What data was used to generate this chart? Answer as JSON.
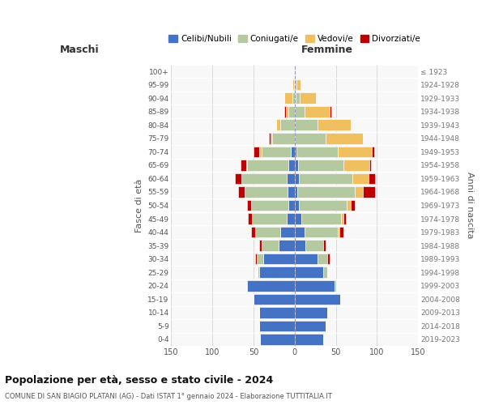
{
  "age_groups": [
    "0-4",
    "5-9",
    "10-14",
    "15-19",
    "20-24",
    "25-29",
    "30-34",
    "35-39",
    "40-44",
    "45-49",
    "50-54",
    "55-59",
    "60-64",
    "65-69",
    "70-74",
    "75-79",
    "80-84",
    "85-89",
    "90-94",
    "95-99",
    "100+"
  ],
  "birth_years": [
    "2019-2023",
    "2014-2018",
    "2009-2013",
    "2004-2008",
    "1999-2003",
    "1994-1998",
    "1989-1993",
    "1984-1988",
    "1979-1983",
    "1974-1978",
    "1969-1973",
    "1964-1968",
    "1959-1963",
    "1954-1958",
    "1949-1953",
    "1944-1948",
    "1939-1943",
    "1934-1938",
    "1929-1933",
    "1924-1928",
    "≤ 1923"
  ],
  "maschi": {
    "celibi": [
      42,
      43,
      43,
      50,
      58,
      43,
      38,
      20,
      18,
      10,
      8,
      9,
      10,
      8,
      5,
      0,
      0,
      0,
      0,
      0,
      0
    ],
    "coniugati": [
      0,
      0,
      0,
      0,
      1,
      2,
      8,
      20,
      30,
      42,
      45,
      52,
      55,
      50,
      35,
      27,
      18,
      8,
      3,
      1,
      0
    ],
    "vedovi": [
      0,
      0,
      0,
      0,
      0,
      0,
      0,
      0,
      0,
      0,
      0,
      0,
      0,
      1,
      3,
      2,
      4,
      3,
      10,
      2,
      0
    ],
    "divorziati": [
      0,
      0,
      0,
      0,
      0,
      0,
      2,
      3,
      5,
      5,
      5,
      8,
      8,
      7,
      7,
      2,
      0,
      2,
      0,
      0,
      0
    ]
  },
  "femmine": {
    "nubili": [
      35,
      38,
      40,
      55,
      48,
      35,
      28,
      13,
      12,
      8,
      5,
      3,
      5,
      4,
      2,
      0,
      0,
      0,
      1,
      0,
      0
    ],
    "coniugate": [
      0,
      0,
      0,
      0,
      2,
      5,
      12,
      22,
      40,
      48,
      58,
      70,
      65,
      55,
      50,
      38,
      28,
      12,
      5,
      2,
      0
    ],
    "vedove": [
      0,
      0,
      0,
      0,
      0,
      0,
      0,
      0,
      2,
      3,
      5,
      10,
      20,
      32,
      42,
      45,
      40,
      30,
      20,
      5,
      1
    ],
    "divorziate": [
      0,
      0,
      0,
      0,
      0,
      0,
      2,
      3,
      5,
      3,
      5,
      15,
      8,
      2,
      3,
      0,
      0,
      2,
      0,
      0,
      0
    ]
  },
  "colors": {
    "celibi": "#4472c4",
    "coniugati": "#b5c9a0",
    "vedovi": "#f0c060",
    "divorziati": "#c00000"
  },
  "xlim": 150,
  "title": "Popolazione per età, sesso e stato civile - 2024",
  "subtitle": "COMUNE DI SAN BIAGIO PLATANI (AG) - Dati ISTAT 1° gennaio 2024 - Elaborazione TUTTITALIA.IT",
  "ylabel_left": "Fasce di età",
  "ylabel_right": "Anni di nascita",
  "legend_labels": [
    "Celibi/Nubili",
    "Coniugati/e",
    "Vedovi/e",
    "Divorziati/e"
  ]
}
